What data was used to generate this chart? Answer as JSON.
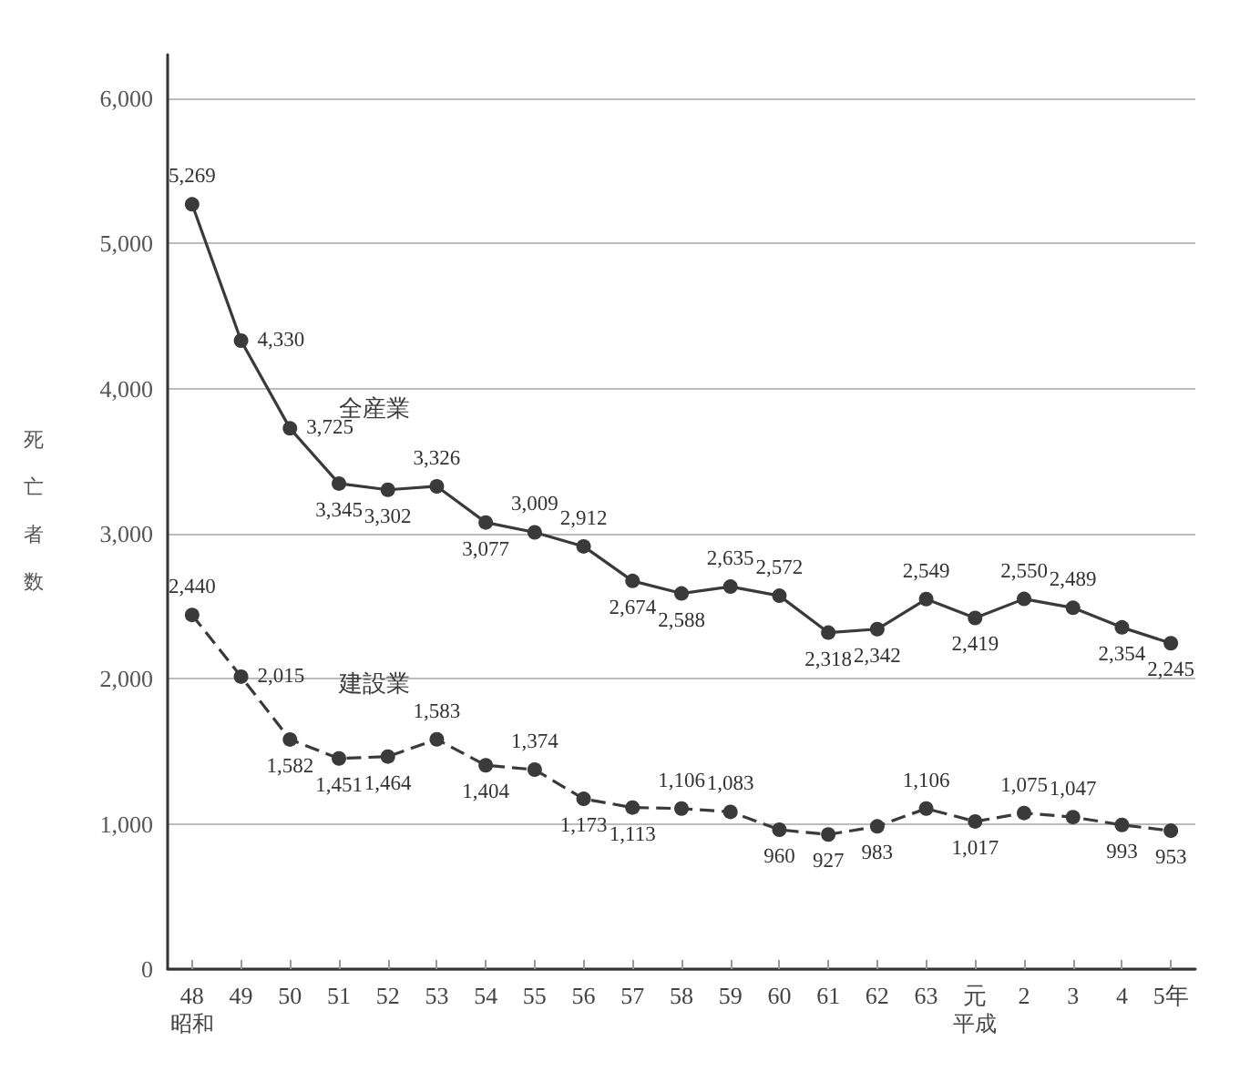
{
  "chart_data": {
    "type": "line",
    "ylabel": "死亡者数",
    "categories": [
      "48",
      "49",
      "50",
      "51",
      "52",
      "53",
      "54",
      "55",
      "56",
      "57",
      "58",
      "59",
      "60",
      "61",
      "62",
      "63",
      "元",
      "2",
      "3",
      "4",
      "5年"
    ],
    "annotations": [
      "昭和",
      "平成"
    ],
    "series": [
      {
        "name": "全産業",
        "color": "#3a3a3a",
        "line_style": "solid",
        "values": [
          5269,
          4330,
          3725,
          3345,
          3302,
          3326,
          3077,
          3009,
          2912,
          2674,
          2588,
          2635,
          2572,
          2318,
          2342,
          2549,
          2419,
          2550,
          2489,
          2354,
          2245
        ],
        "value_labels": [
          "5,269",
          "4,330",
          "3,725",
          "3,345",
          "3,302",
          "3,326",
          "3,077",
          "3,009",
          "2,912",
          "2,674",
          "2,588",
          "2,635",
          "2,572",
          "2,318",
          "2,342",
          "2,549",
          "2,419",
          "2,550",
          "2,489",
          "2,354",
          "2,245"
        ]
      },
      {
        "name": "建設業",
        "color": "#3a3a3a",
        "line_style": "dashed",
        "values": [
          2440,
          2015,
          1582,
          1451,
          1464,
          1583,
          1404,
          1374,
          1173,
          1113,
          1106,
          1083,
          960,
          927,
          983,
          1106,
          1017,
          1075,
          1047,
          993,
          953
        ],
        "value_labels": [
          "2,440",
          "2,015",
          "1,582",
          "1,451",
          "1,464",
          "1,583",
          "1,404",
          "1,374",
          "1,173",
          "1,113",
          "1,106",
          "1,083",
          "960",
          "927",
          "983",
          "1,106",
          "1,017",
          "1,075",
          "1,047",
          "993",
          "953"
        ]
      }
    ],
    "ylim": [
      0,
      6300
    ],
    "yticks": [
      0,
      {
        "value": 1000,
        "label": "1,000"
      },
      {
        "value": 2000,
        "label": "2,000"
      },
      {
        "value": 3000,
        "label": "3,000"
      },
      {
        "value": 4000,
        "label": "4,000"
      },
      {
        "value": 5000,
        "label": "5,000"
      },
      {
        "value": 6000,
        "label": "6,000"
      }
    ],
    "grid": "y",
    "marker": "circle",
    "legend": false
  }
}
